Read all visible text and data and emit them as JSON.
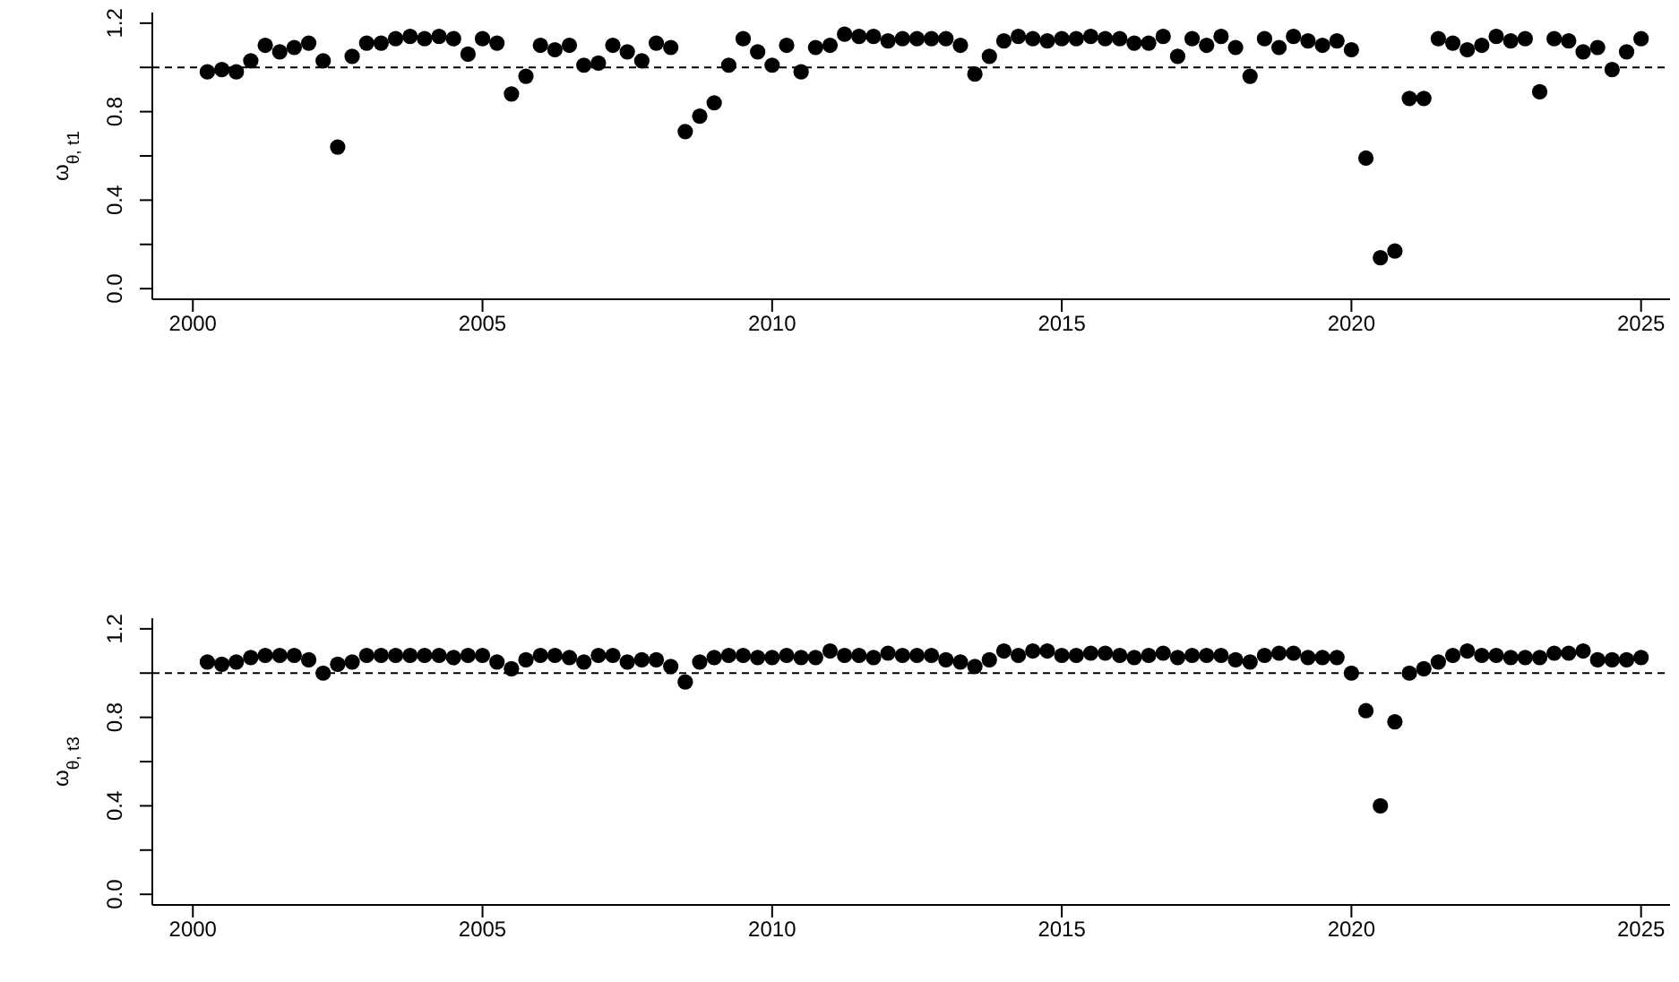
{
  "chart_data": [
    {
      "type": "scatter",
      "ylabel": "ω$_{θ, t1}$",
      "marker": "circle",
      "grid": false,
      "legend": false,
      "x": [
        2000.25,
        2000.5,
        2000.75,
        2001,
        2001.25,
        2001.5,
        2001.75,
        2002,
        2002.25,
        2002.5,
        2002.75,
        2003,
        2003.25,
        2003.5,
        2003.75,
        2004,
        2004.25,
        2004.5,
        2004.75,
        2005,
        2005.25,
        2005.5,
        2005.75,
        2006,
        2006.25,
        2006.5,
        2006.75,
        2007,
        2007.25,
        2007.5,
        2007.75,
        2008,
        2008.25,
        2008.5,
        2008.75,
        2009,
        2009.25,
        2009.5,
        2009.75,
        2010,
        2010.25,
        2010.5,
        2010.75,
        2011,
        2011.25,
        2011.5,
        2011.75,
        2012,
        2012.25,
        2012.5,
        2012.75,
        2013,
        2013.25,
        2013.5,
        2013.75,
        2014,
        2014.25,
        2014.5,
        2014.75,
        2015,
        2015.25,
        2015.5,
        2015.75,
        2016,
        2016.25,
        2016.5,
        2016.75,
        2017,
        2017.25,
        2017.5,
        2017.75,
        2018,
        2018.25,
        2018.5,
        2018.75,
        2019,
        2019.25,
        2019.5,
        2019.75,
        2020,
        2020.25,
        2020.5,
        2020.75,
        2021,
        2021.25,
        2021.5,
        2021.75,
        2022,
        2022.25,
        2022.5,
        2022.75,
        2023,
        2023.25,
        2023.5,
        2023.75,
        2024,
        2024.25,
        2024.5,
        2024.75,
        2025
      ],
      "series": [
        {
          "color": "#000000",
          "values": [
            0.98,
            0.99,
            0.98,
            1.03,
            1.1,
            1.07,
            1.09,
            1.11,
            1.03,
            0.64,
            1.05,
            1.11,
            1.11,
            1.13,
            1.14,
            1.13,
            1.14,
            1.13,
            1.06,
            1.13,
            1.11,
            0.88,
            0.96,
            1.1,
            1.08,
            1.1,
            1.01,
            1.02,
            1.1,
            1.07,
            1.03,
            1.11,
            1.09,
            0.71,
            0.78,
            0.84,
            1.01,
            1.13,
            1.07,
            1.01,
            1.1,
            0.98,
            1.09,
            1.1,
            1.15,
            1.14,
            1.14,
            1.12,
            1.13,
            1.13,
            1.13,
            1.13,
            1.1,
            0.97,
            1.05,
            1.12,
            1.14,
            1.13,
            1.12,
            1.13,
            1.13,
            1.14,
            1.13,
            1.13,
            1.11,
            1.11,
            1.14,
            1.05,
            1.13,
            1.1,
            1.14,
            1.09,
            0.96,
            1.13,
            1.09,
            1.14,
            1.12,
            1.1,
            1.12,
            1.08,
            0.59,
            0.14,
            0.17,
            0.86,
            0.86,
            1.13,
            1.11,
            1.08,
            1.1,
            1.14,
            1.12,
            1.13,
            0.89,
            1.13,
            1.12,
            1.07,
            1.09,
            0.99,
            1.07,
            1.13
          ]
        }
      ],
      "xlim": [
        1999.3,
        2025.5
      ],
      "xticks": [
        2000,
        2005,
        2010,
        2015,
        2020,
        2025
      ],
      "ylim": [
        -0.048,
        1.248
      ],
      "yticks": [
        {
          "value": 0,
          "label": "0.0"
        },
        {
          "value": 0.2,
          "label": null
        },
        {
          "value": 0.4,
          "label": "0.4"
        },
        {
          "value": 0.6,
          "label": null
        },
        {
          "value": 0.8,
          "label": "0.8"
        },
        {
          "value": 1.0,
          "label": null
        },
        {
          "value": 1.2,
          "label": "1.2"
        }
      ],
      "ref_lines": [
        {
          "axis": "y",
          "value": 1,
          "color": "#000000",
          "line_style": "dashed"
        }
      ]
    },
    {
      "type": "scatter",
      "ylabel": "ω$_{θ, t3}$",
      "marker": "circle",
      "grid": false,
      "legend": false,
      "x": [
        2000.25,
        2000.5,
        2000.75,
        2001,
        2001.25,
        2001.5,
        2001.75,
        2002,
        2002.25,
        2002.5,
        2002.75,
        2003,
        2003.25,
        2003.5,
        2003.75,
        2004,
        2004.25,
        2004.5,
        2004.75,
        2005,
        2005.25,
        2005.5,
        2005.75,
        2006,
        2006.25,
        2006.5,
        2006.75,
        2007,
        2007.25,
        2007.5,
        2007.75,
        2008,
        2008.25,
        2008.5,
        2008.75,
        2009,
        2009.25,
        2009.5,
        2009.75,
        2010,
        2010.25,
        2010.5,
        2010.75,
        2011,
        2011.25,
        2011.5,
        2011.75,
        2012,
        2012.25,
        2012.5,
        2012.75,
        2013,
        2013.25,
        2013.5,
        2013.75,
        2014,
        2014.25,
        2014.5,
        2014.75,
        2015,
        2015.25,
        2015.5,
        2015.75,
        2016,
        2016.25,
        2016.5,
        2016.75,
        2017,
        2017.25,
        2017.5,
        2017.75,
        2018,
        2018.25,
        2018.5,
        2018.75,
        2019,
        2019.25,
        2019.5,
        2019.75,
        2020,
        2020.25,
        2020.5,
        2020.75,
        2021,
        2021.25,
        2021.5,
        2021.75,
        2022,
        2022.25,
        2022.5,
        2022.75,
        2023,
        2023.25,
        2023.5,
        2023.75,
        2024,
        2024.25,
        2024.5,
        2024.75,
        2025
      ],
      "series": [
        {
          "color": "#000000",
          "values": [
            1.05,
            1.04,
            1.05,
            1.07,
            1.08,
            1.08,
            1.08,
            1.06,
            1.0,
            1.04,
            1.05,
            1.08,
            1.08,
            1.08,
            1.08,
            1.08,
            1.08,
            1.07,
            1.08,
            1.08,
            1.05,
            1.02,
            1.06,
            1.08,
            1.08,
            1.07,
            1.05,
            1.08,
            1.08,
            1.05,
            1.06,
            1.06,
            1.03,
            0.96,
            1.05,
            1.07,
            1.08,
            1.08,
            1.07,
            1.07,
            1.08,
            1.07,
            1.07,
            1.1,
            1.08,
            1.08,
            1.07,
            1.09,
            1.08,
            1.08,
            1.08,
            1.06,
            1.05,
            1.03,
            1.06,
            1.1,
            1.08,
            1.1,
            1.1,
            1.08,
            1.08,
            1.09,
            1.09,
            1.08,
            1.07,
            1.08,
            1.09,
            1.07,
            1.08,
            1.08,
            1.08,
            1.06,
            1.05,
            1.08,
            1.09,
            1.09,
            1.07,
            1.07,
            1.07,
            1.0,
            0.83,
            0.4,
            0.78,
            1.0,
            1.02,
            1.05,
            1.08,
            1.1,
            1.08,
            1.08,
            1.07,
            1.07,
            1.07,
            1.09,
            1.09,
            1.1,
            1.06,
            1.06,
            1.06,
            1.07
          ]
        }
      ],
      "xlim": [
        1999.3,
        2025.5
      ],
      "xticks": [
        2000,
        2005,
        2010,
        2015,
        2020,
        2025
      ],
      "ylim": [
        -0.048,
        1.248
      ],
      "yticks": [
        {
          "value": 0,
          "label": "0.0"
        },
        {
          "value": 0.2,
          "label": null
        },
        {
          "value": 0.4,
          "label": "0.4"
        },
        {
          "value": 0.6,
          "label": null
        },
        {
          "value": 0.8,
          "label": "0.8"
        },
        {
          "value": 1.0,
          "label": null
        },
        {
          "value": 1.2,
          "label": "1.2"
        }
      ],
      "ref_lines": [
        {
          "axis": "y",
          "value": 1,
          "color": "#000000",
          "line_style": "dashed"
        }
      ]
    }
  ]
}
